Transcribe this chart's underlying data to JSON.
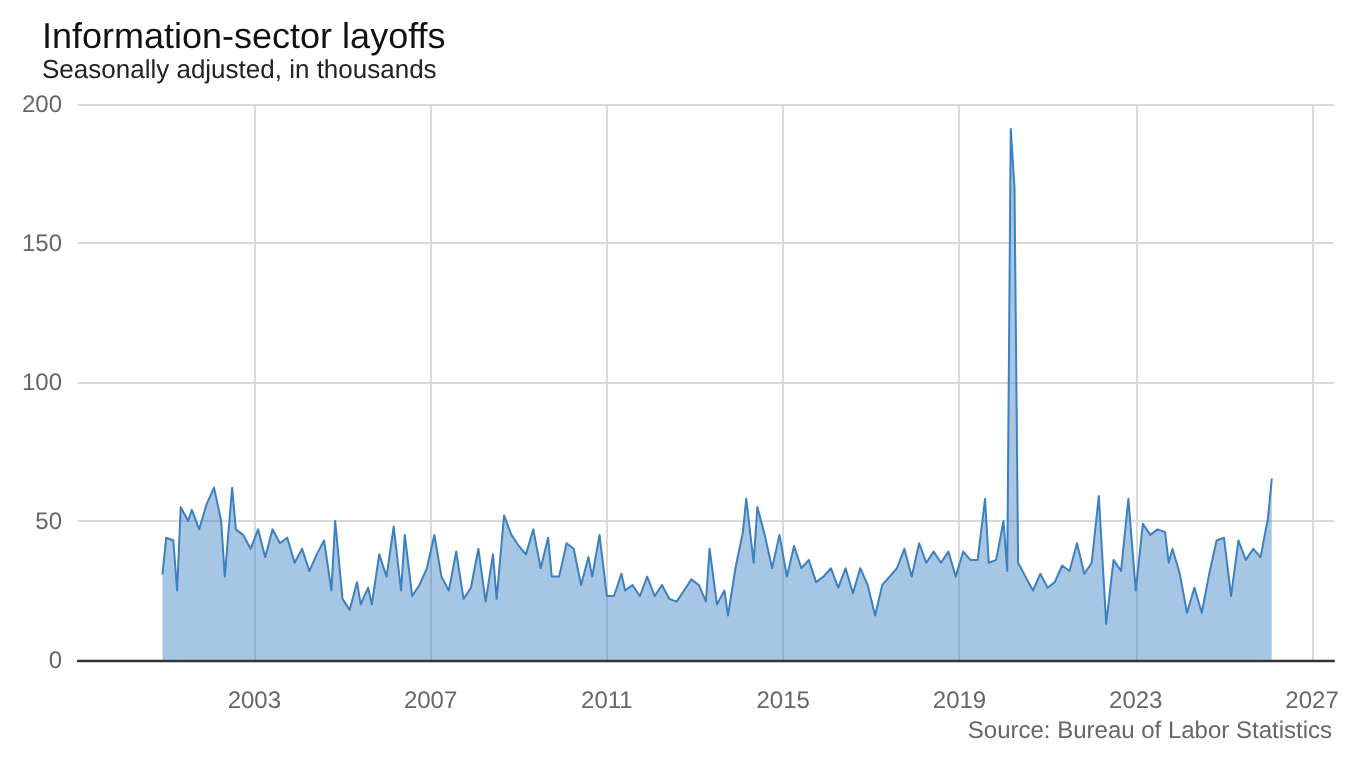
{
  "chart_data": {
    "type": "area",
    "title": "Information-sector layoffs",
    "subtitle": "Seasonally adjusted, in thousands",
    "annotations": [
      "Source: Bureau of Labor Statistics"
    ],
    "x": [
      "2000-12",
      "2001-01",
      "2001-03",
      "2001-04",
      "2001-05",
      "2001-07",
      "2001-08",
      "2001-10",
      "2001-12",
      "2002-02",
      "2002-04",
      "2002-05",
      "2002-07",
      "2002-08",
      "2002-10",
      "2002-12",
      "2003-02",
      "2003-04",
      "2003-06",
      "2003-08",
      "2003-10",
      "2003-12",
      "2004-02",
      "2004-04",
      "2004-06",
      "2004-08",
      "2004-10",
      "2004-11",
      "2005-01",
      "2005-03",
      "2005-05",
      "2005-06",
      "2005-08",
      "2005-09",
      "2005-11",
      "2006-01",
      "2006-03",
      "2006-05",
      "2006-06",
      "2006-08",
      "2006-10",
      "2006-12",
      "2007-02",
      "2007-04",
      "2007-06",
      "2007-08",
      "2007-10",
      "2007-12",
      "2008-02",
      "2008-04",
      "2008-06",
      "2008-07",
      "2008-09",
      "2008-11",
      "2009-01",
      "2009-03",
      "2009-05",
      "2009-07",
      "2009-09",
      "2009-10",
      "2009-12",
      "2010-02",
      "2010-04",
      "2010-06",
      "2010-08",
      "2010-09",
      "2010-11",
      "2011-01",
      "2011-03",
      "2011-05",
      "2011-06",
      "2011-08",
      "2011-10",
      "2011-12",
      "2012-02",
      "2012-04",
      "2012-06",
      "2012-08",
      "2012-10",
      "2012-12",
      "2013-02",
      "2013-04",
      "2013-05",
      "2013-07",
      "2013-09",
      "2013-10",
      "2013-12",
      "2014-02",
      "2014-03",
      "2014-05",
      "2014-06",
      "2014-08",
      "2014-10",
      "2014-12",
      "2015-02",
      "2015-04",
      "2015-06",
      "2015-08",
      "2015-10",
      "2015-12",
      "2016-02",
      "2016-04",
      "2016-06",
      "2016-08",
      "2016-10",
      "2016-12",
      "2017-02",
      "2017-04",
      "2017-06",
      "2017-08",
      "2017-10",
      "2017-12",
      "2018-02",
      "2018-04",
      "2018-06",
      "2018-08",
      "2018-10",
      "2018-12",
      "2019-02",
      "2019-04",
      "2019-06",
      "2019-08",
      "2019-09",
      "2019-11",
      "2020-01",
      "2020-02",
      "2020-03",
      "2020-04",
      "2020-05",
      "2020-07",
      "2020-09",
      "2020-11",
      "2021-01",
      "2021-03",
      "2021-05",
      "2021-07",
      "2021-09",
      "2021-11",
      "2022-01",
      "2022-03",
      "2022-05",
      "2022-07",
      "2022-09",
      "2022-11",
      "2023-01",
      "2023-03",
      "2023-05",
      "2023-07",
      "2023-09",
      "2023-10",
      "2023-11",
      "2024-01",
      "2024-03",
      "2024-05",
      "2024-07",
      "2024-09",
      "2024-11",
      "2025-01",
      "2025-03",
      "2025-05",
      "2025-07",
      "2025-09",
      "2025-11",
      "2025-12",
      "2026-01",
      "2026-02"
    ],
    "series": [
      {
        "color": "#3b80c0",
        "values": [
          31,
          44,
          43,
          25,
          55,
          50,
          54,
          47,
          56,
          62,
          50,
          30,
          62,
          47,
          45,
          40,
          47,
          37,
          47,
          42,
          44,
          35,
          40,
          32,
          38,
          43,
          25,
          50,
          22,
          18,
          28,
          20,
          26,
          20,
          38,
          30,
          48,
          25,
          45,
          23,
          27,
          33,
          45,
          30,
          25,
          39,
          22,
          26,
          40,
          21,
          38,
          22,
          52,
          45,
          41,
          38,
          47,
          33,
          44,
          30,
          30,
          42,
          40,
          27,
          37,
          30,
          45,
          23,
          23,
          31,
          25,
          27,
          23,
          30,
          23,
          27,
          22,
          21,
          25,
          29,
          27,
          21,
          40,
          20,
          25,
          16,
          33,
          46,
          58,
          35,
          55,
          45,
          33,
          45,
          30,
          41,
          33,
          36,
          28,
          30,
          33,
          26,
          33,
          24,
          33,
          27,
          16,
          27,
          30,
          33,
          40,
          30,
          42,
          35,
          39,
          35,
          39,
          30,
          39,
          36,
          36,
          58,
          35,
          36,
          50,
          32,
          191,
          170,
          35,
          30,
          25,
          31,
          26,
          28,
          34,
          32,
          42,
          31,
          35,
          59,
          13,
          36,
          32,
          58,
          25,
          49,
          45,
          47,
          46,
          35,
          40,
          31,
          17,
          26,
          17,
          31,
          43,
          44,
          23,
          43,
          36,
          40,
          37,
          44,
          51,
          65
        ]
      }
    ],
    "xlim": [
      "1999-01",
      "2027-07"
    ],
    "xticks": [
      "2003",
      "2007",
      "2011",
      "2015",
      "2019",
      "2023",
      "2027"
    ],
    "ylim": [
      0,
      200
    ],
    "yticks": [
      0,
      50,
      100,
      150,
      200
    ],
    "grid": true,
    "marker": "none",
    "line_style": "solid"
  }
}
